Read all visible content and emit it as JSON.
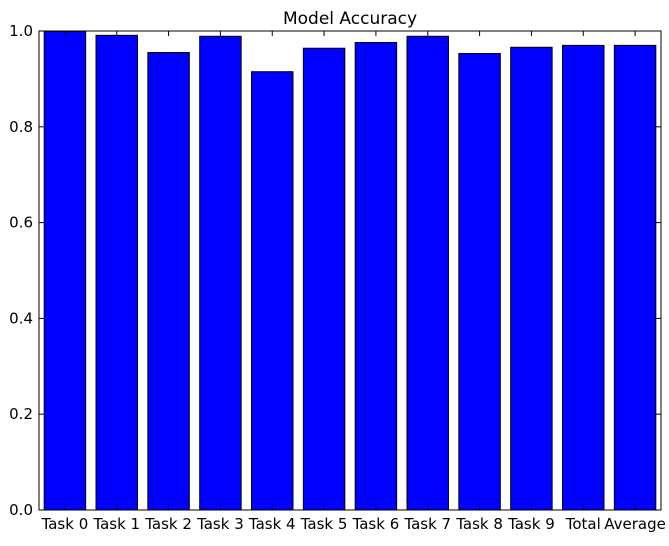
{
  "chart_data": {
    "type": "bar",
    "title": "Model Accuracy",
    "xlabel": "",
    "ylabel": "",
    "categories": [
      "Task 0",
      "Task 1",
      "Task 2",
      "Task 3",
      "Task 4",
      "Task 5",
      "Task 6",
      "Task 7",
      "Task 8",
      "Task 9",
      "Total",
      "Average"
    ],
    "values": [
      0.999,
      0.991,
      0.955,
      0.989,
      0.915,
      0.964,
      0.976,
      0.989,
      0.953,
      0.966,
      0.97,
      0.97
    ],
    "ylim": [
      0.0,
      1.0
    ],
    "yticks": [
      "0.0",
      "0.2",
      "0.4",
      "0.6",
      "0.8",
      "1.0"
    ],
    "grid": false,
    "legend": "none",
    "colors": {
      "bar_fill": "#0000ff",
      "bar_edge": "#000000",
      "axes": "#000000",
      "background": "#ffffff"
    }
  }
}
